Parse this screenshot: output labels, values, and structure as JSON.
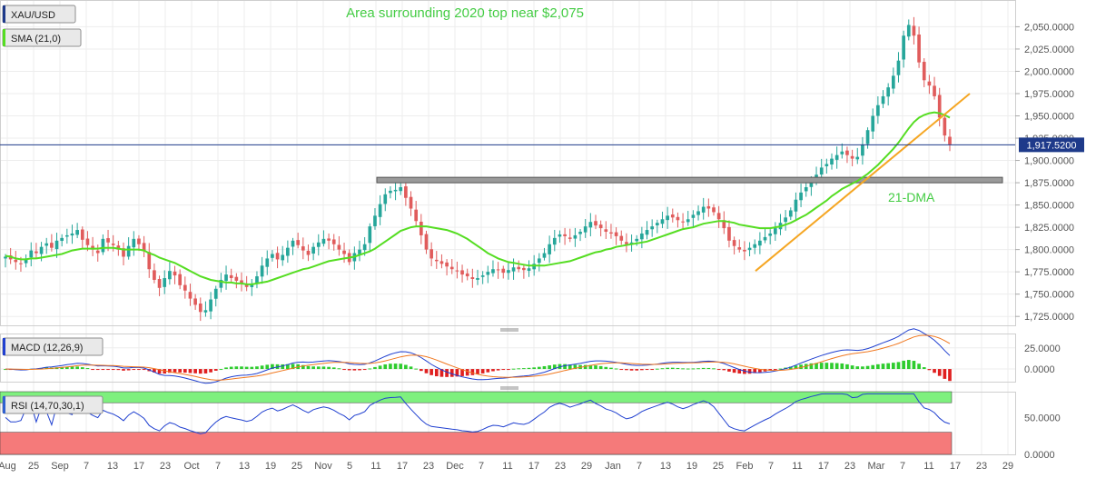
{
  "chart_data": [
    {
      "type": "candlestick",
      "panel": "price",
      "symbol": "XAU/USD",
      "indicator_label": "SMA (21,0)",
      "title": "Area surrounding 2020 top near $2,075",
      "ylim": [
        1715,
        2080
      ],
      "y_ticks": [
        1725,
        1750,
        1775,
        1800,
        1825,
        1850,
        1875,
        1900,
        1925,
        1950,
        1975,
        2000,
        2025,
        2050
      ],
      "y_tick_labels": [
        "1,725.0000",
        "1,750.0000",
        "1,775.0000",
        "1,800.0000",
        "1,825.0000",
        "1,850.0000",
        "1,875.0000",
        "1,900.0000",
        "1,925.0000",
        "1,950.0000",
        "1,975.0000",
        "2,000.0000",
        "2,025.0000",
        "2,050.0000"
      ],
      "current_price": 1917.52,
      "current_price_label": "1,917.5200",
      "closes": [
        1792,
        1789,
        1786,
        1784,
        1790,
        1799,
        1796,
        1803,
        1807,
        1802,
        1810,
        1813,
        1816,
        1818,
        1822,
        1811,
        1805,
        1800,
        1796,
        1812,
        1808,
        1805,
        1800,
        1792,
        1804,
        1812,
        1806,
        1798,
        1778,
        1766,
        1757,
        1768,
        1776,
        1771,
        1760,
        1754,
        1745,
        1738,
        1730,
        1732,
        1744,
        1756,
        1766,
        1772,
        1768,
        1765,
        1762,
        1758,
        1761,
        1770,
        1782,
        1790,
        1795,
        1789,
        1794,
        1802,
        1810,
        1805,
        1799,
        1794,
        1803,
        1808,
        1812,
        1810,
        1806,
        1800,
        1795,
        1786,
        1796,
        1800,
        1806,
        1826,
        1838,
        1851,
        1862,
        1866,
        1867,
        1870,
        1858,
        1846,
        1832,
        1816,
        1800,
        1790,
        1787,
        1784,
        1781,
        1778,
        1776,
        1772,
        1770,
        1767,
        1768,
        1771,
        1775,
        1778,
        1777,
        1774,
        1777,
        1780,
        1778,
        1777,
        1779,
        1784,
        1790,
        1796,
        1806,
        1813,
        1817,
        1815,
        1812,
        1816,
        1820,
        1826,
        1831,
        1827,
        1824,
        1820,
        1818,
        1815,
        1810,
        1806,
        1808,
        1812,
        1818,
        1822,
        1826,
        1830,
        1834,
        1838,
        1836,
        1833,
        1831,
        1834,
        1839,
        1843,
        1848,
        1846,
        1842,
        1834,
        1824,
        1810,
        1804,
        1800,
        1798,
        1802,
        1806,
        1810,
        1814,
        1818,
        1824,
        1830,
        1836,
        1844,
        1856,
        1864,
        1870,
        1878,
        1884,
        1892,
        1896,
        1902,
        1906,
        1910,
        1906,
        1902,
        1904,
        1918,
        1934,
        1950,
        1962,
        1972,
        1982,
        1995,
        2012,
        2040,
        2052,
        2040,
        2010,
        1990,
        1984,
        1972,
        1948,
        1928,
        1918
      ],
      "sma21": [
        1793,
        1792,
        1790,
        1789,
        1789,
        1790,
        1790,
        1791,
        1792,
        1793,
        1794,
        1795,
        1797,
        1799,
        1800,
        1801,
        1801,
        1801,
        1801,
        1802,
        1802,
        1802,
        1801,
        1800,
        1800,
        1800,
        1800,
        1799,
        1796,
        1794,
        1791,
        1789,
        1787,
        1785,
        1782,
        1779,
        1776,
        1773,
        1770,
        1768,
        1766,
        1765,
        1764,
        1763,
        1763,
        1762,
        1762,
        1761,
        1761,
        1762,
        1763,
        1764,
        1766,
        1768,
        1770,
        1772,
        1774,
        1776,
        1778,
        1779,
        1781,
        1783,
        1785,
        1787,
        1788,
        1789,
        1790,
        1791,
        1792,
        1794,
        1796,
        1798,
        1801,
        1805,
        1809,
        1813,
        1817,
        1821,
        1823,
        1825,
        1826,
        1826,
        1826,
        1825,
        1824,
        1823,
        1822,
        1820,
        1818,
        1815,
        1812,
        1808,
        1804,
        1800,
        1796,
        1793,
        1790,
        1788,
        1786,
        1785,
        1784,
        1783,
        1782,
        1782,
        1782,
        1782,
        1783,
        1784,
        1785,
        1786,
        1787,
        1789,
        1791,
        1793,
        1795,
        1797,
        1798,
        1800,
        1801,
        1803,
        1804,
        1805,
        1806,
        1807,
        1808,
        1809,
        1811,
        1813,
        1815,
        1817,
        1819,
        1821,
        1823,
        1824,
        1825,
        1827,
        1829,
        1830,
        1831,
        1832,
        1832,
        1831,
        1830,
        1828,
        1827,
        1826,
        1825,
        1824,
        1824,
        1824,
        1825,
        1826,
        1828,
        1830,
        1833,
        1836,
        1839,
        1843,
        1847,
        1851,
        1855,
        1860,
        1864,
        1868,
        1871,
        1874,
        1877,
        1881,
        1885,
        1890,
        1895,
        1901,
        1907,
        1913,
        1920,
        1928,
        1936,
        1943,
        1948,
        1951,
        1953,
        1954,
        1953,
        1951,
        1948
      ],
      "trendline": {
        "start_price": 1776,
        "end_price": 1975
      },
      "horizontal_level": 1878,
      "annotations": [
        "21-DMA"
      ]
    },
    {
      "type": "line",
      "panel": "macd",
      "indicator_label": "MACD (12,26,9)",
      "ylim": [
        -15,
        42
      ],
      "y_ticks": [
        0,
        25
      ],
      "y_tick_labels": [
        "0.0000",
        "25.0000"
      ],
      "series": [
        {
          "name": "MACD",
          "color": "#2040d0"
        },
        {
          "name": "Signal",
          "color": "#f07820"
        },
        {
          "name": "Histogram",
          "color": "#2ecc2e"
        }
      ]
    },
    {
      "type": "line",
      "panel": "rsi",
      "indicator_label": "RSI (14,70,30,1)",
      "ylim": [
        0,
        85
      ],
      "y_ticks": [
        0,
        50
      ],
      "y_tick_labels": [
        "0.0000",
        "50.0000"
      ],
      "overbought": 70,
      "oversold": 30
    }
  ],
  "x_axis": {
    "labels": [
      "Aug",
      "25",
      "Sep",
      "7",
      "13",
      "17",
      "23",
      "Oct",
      "7",
      "13",
      "19",
      "25",
      "Nov",
      "5",
      "11",
      "17",
      "23",
      "Dec",
      "7",
      "11",
      "17",
      "23",
      "29",
      "Jan",
      "7",
      "13",
      "19",
      "25",
      "Feb",
      "7",
      "11",
      "17",
      "23",
      "Mar",
      "7",
      "11",
      "17",
      "23",
      "29"
    ]
  },
  "colors": {
    "up": "#26a69a",
    "down": "#e05c5c",
    "sma": "#55dd22",
    "trendline": "#f5a623",
    "level": "#7a7a7a",
    "price_line": "#1e3a8a",
    "title_text": "#44cc44",
    "rsi_overbought_band": "#7ef07e",
    "rsi_oversold_band": "#f57a7a"
  }
}
